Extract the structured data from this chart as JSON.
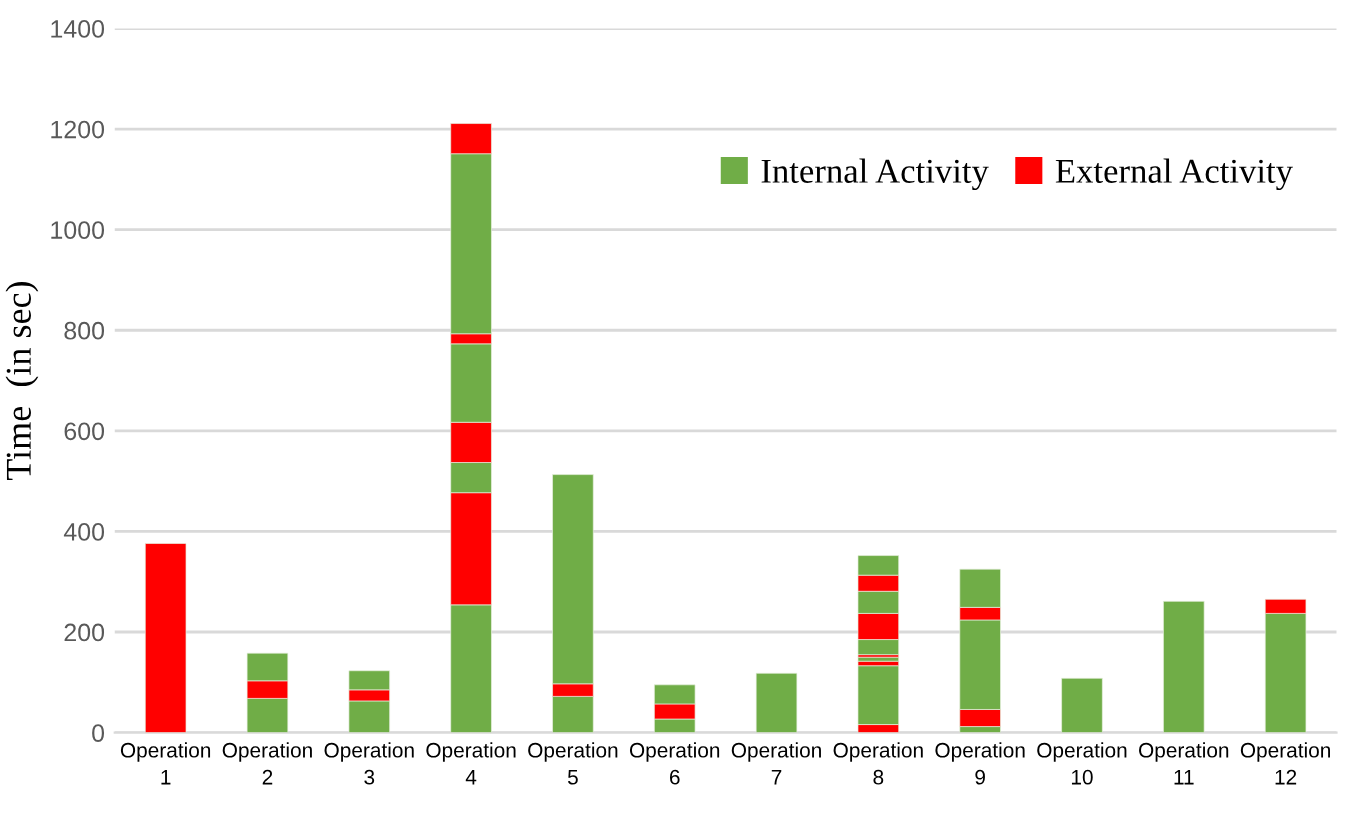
{
  "chart_data": {
    "type": "bar",
    "stacked": true,
    "ylabel": "Time  (in sec)",
    "categories": [
      "Operation\n1",
      "Operation\n2",
      "Operation\n3",
      "Operation\n4",
      "Operation\n5",
      "Operation\n6",
      "Operation\n7",
      "Operation\n8",
      "Operation\n9",
      "Operation\n10",
      "Operation\n11",
      "Operation\n12"
    ],
    "series": [
      {
        "name": "Internal Activity",
        "color": "#70ad47",
        "values": [
          null,
          68,
          63,
          254,
          72,
          27,
          118,
          null,
          12,
          108,
          261,
          237
        ]
      },
      {
        "name": "External Activity",
        "color": "#ff0000",
        "values": [
          376,
          35,
          22,
          223,
          25,
          30,
          null,
          16,
          34,
          null,
          null,
          28
        ]
      },
      {
        "color": "#70ad47",
        "values": [
          null,
          55,
          38,
          60,
          416,
          38,
          null,
          117,
          178,
          null,
          null,
          null
        ]
      },
      {
        "color": "#ff0000",
        "values": [
          null,
          null,
          null,
          80,
          null,
          null,
          null,
          9,
          25,
          null,
          null,
          null
        ]
      },
      {
        "color": "#70ad47",
        "values": [
          null,
          null,
          null,
          156,
          null,
          null,
          null,
          8,
          76,
          null,
          null,
          null
        ]
      },
      {
        "color": "#ff0000",
        "values": [
          null,
          null,
          null,
          20,
          null,
          null,
          null,
          5,
          null,
          null,
          null,
          null
        ]
      },
      {
        "color": "#70ad47",
        "values": [
          null,
          null,
          null,
          358,
          null,
          null,
          null,
          30,
          null,
          null,
          null,
          null
        ]
      },
      {
        "color": "#ff0000",
        "values": [
          null,
          null,
          null,
          60,
          null,
          null,
          null,
          52,
          null,
          null,
          null,
          null
        ]
      },
      {
        "color": "#70ad47",
        "values": [
          null,
          null,
          null,
          null,
          null,
          null,
          null,
          44,
          null,
          null,
          null,
          null
        ]
      },
      {
        "color": "#ff0000",
        "values": [
          null,
          null,
          null,
          null,
          null,
          null,
          null,
          32,
          null,
          null,
          null,
          null
        ]
      },
      {
        "color": "#70ad47",
        "values": [
          null,
          null,
          null,
          null,
          null,
          null,
          null,
          39,
          null,
          null,
          null,
          null
        ]
      }
    ],
    "ylim": [
      0,
      1400
    ],
    "yticks": [
      0,
      200,
      400,
      600,
      800,
      1000,
      1200,
      1400
    ],
    "grid": "y",
    "legend": "top right"
  }
}
